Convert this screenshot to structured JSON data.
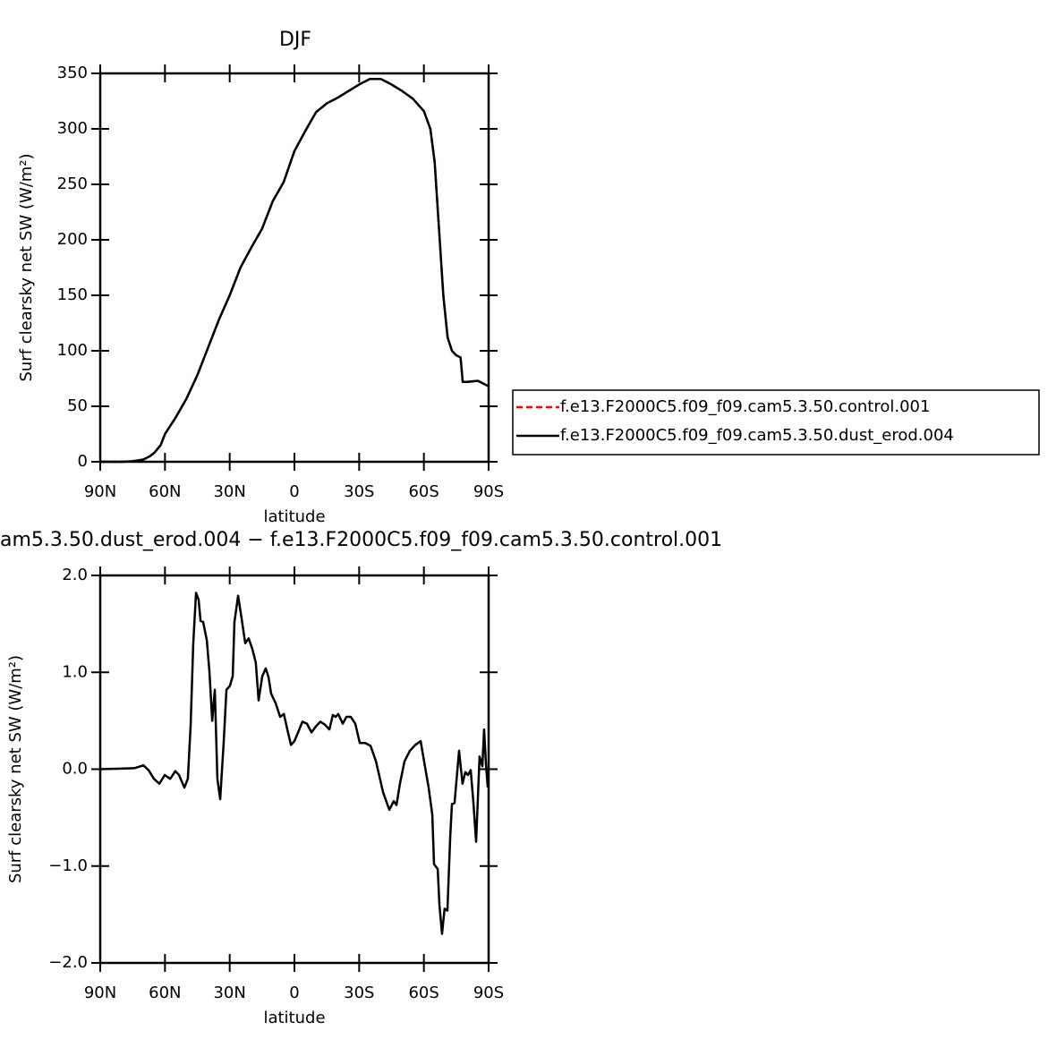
{
  "chart_data": [
    {
      "type": "line",
      "title": "DJF",
      "ylabel": "Surf clearsky net SW (W/m²)",
      "xlabel": "latitude",
      "x": [
        90,
        85,
        80,
        75,
        70,
        67,
        65,
        62,
        60,
        55,
        50,
        45,
        40,
        35,
        30,
        25,
        20,
        15,
        10,
        5,
        0,
        -5,
        -10,
        -15,
        -20,
        -25,
        -30,
        -35,
        -40,
        -45,
        -50,
        -55,
        -60,
        -63,
        -65,
        -67,
        -69,
        -71,
        -73,
        -75,
        -77,
        -78,
        -80,
        -85,
        -88,
        -90
      ],
      "series": [
        {
          "name": "f.e13.F2000C5.f09_f09.cam5.3.50.control.001",
          "color": "#ff0000",
          "line_style": "dashed",
          "values": [
            0,
            0,
            0,
            0.5,
            2,
            5,
            8,
            15,
            25,
            40,
            57,
            78,
            103,
            128,
            150,
            175,
            193,
            210,
            235,
            252,
            280,
            298,
            315,
            323,
            328,
            334,
            340,
            345,
            345,
            340,
            334,
            327,
            316,
            300,
            270,
            210,
            150,
            112,
            100,
            96,
            94,
            72,
            72,
            73,
            70,
            68
          ]
        },
        {
          "name": "f.e13.F2000C5.f09_f09.cam5.3.50.dust_erod.004",
          "color": "#000000",
          "line_style": "solid",
          "values": [
            0,
            0,
            0,
            0.5,
            2,
            5,
            8,
            15,
            25,
            40,
            57,
            78,
            103,
            128,
            150,
            175,
            193,
            210,
            235,
            252,
            280,
            298,
            315,
            323,
            328,
            334,
            340,
            345,
            345,
            340,
            334,
            327,
            316,
            300,
            270,
            210,
            150,
            112,
            100,
            96,
            94,
            72,
            72,
            73,
            70,
            68
          ]
        }
      ],
      "xlim": [
        90,
        -90
      ],
      "xticks": [
        {
          "value": 90,
          "label": "90N"
        },
        {
          "value": 60,
          "label": "60N"
        },
        {
          "value": 30,
          "label": "30N"
        },
        0,
        {
          "value": -30,
          "label": "30S"
        },
        {
          "value": -60,
          "label": "60S"
        },
        {
          "value": -90,
          "label": "90S"
        }
      ],
      "ylim": [
        0,
        350
      ],
      "yticks": [
        0,
        50,
        100,
        150,
        200,
        250,
        300,
        350
      ],
      "legend": "right"
    },
    {
      "type": "line",
      "title": "am5.3.50.dust_erod.004 − f.e13.F2000C5.f09_f09.cam5.3.50.control.001",
      "ylabel": "Surf clearsky net SW (W/m²)",
      "xlabel": "latitude",
      "x": [
        90,
        74.2,
        70,
        67.6,
        65.1,
        62.6,
        60.1,
        57.6,
        55.2,
        53.5,
        51,
        49.4,
        48.1,
        46.9,
        45.6,
        44.4,
        43.5,
        42.3,
        40.6,
        39.4,
        38.1,
        36.9,
        35.7,
        34.4,
        32.8,
        31.5,
        29.9,
        28.6,
        27.8,
        26.1,
        24.5,
        22.8,
        21.2,
        19.5,
        17.9,
        16.6,
        14.9,
        13.3,
        12,
        10.8,
        8.7,
        6.6,
        4.9,
        3.3,
        1.6,
        0,
        -1.7,
        -3.7,
        -5.8,
        -7.9,
        -9.9,
        -12,
        -14.1,
        -16.2,
        -17.8,
        -19.1,
        -20.3,
        -22.4,
        -24.1,
        -26.1,
        -28.2,
        -30.3,
        -32.8,
        -35.3,
        -37.8,
        -41.1,
        -44,
        -46,
        -47.3,
        -48.9,
        -51,
        -53.5,
        -56,
        -58.5,
        -60.1,
        -62.2,
        -63.9,
        -64.7,
        -66.4,
        -67.2,
        -68.4,
        -69.6,
        -70.9,
        -72.2,
        -73,
        -74.2,
        -76.3,
        -77.9,
        -79.2,
        -80.4,
        -81.7,
        -82.9,
        -84.2,
        -85.8,
        -87.1,
        -87.9,
        -88.8,
        -89.6
      ],
      "series": [
        {
          "color": "#000000",
          "line_style": "solid",
          "values": [
            0,
            0.01,
            0.04,
            -0.01,
            -0.1,
            -0.15,
            -0.06,
            -0.1,
            -0.02,
            -0.06,
            -0.19,
            -0.1,
            0.45,
            1.29,
            1.82,
            1.75,
            1.53,
            1.52,
            1.33,
            1.01,
            0.5,
            0.82,
            -0.1,
            -0.31,
            0.27,
            0.82,
            0.86,
            0.96,
            1.52,
            1.79,
            1.56,
            1.3,
            1.35,
            1.24,
            1.1,
            0.71,
            0.96,
            1.04,
            0.95,
            0.78,
            0.68,
            0.54,
            0.57,
            0.41,
            0.25,
            0.29,
            0.38,
            0.49,
            0.47,
            0.38,
            0.44,
            0.49,
            0.46,
            0.41,
            0.56,
            0.54,
            0.57,
            0.47,
            0.54,
            0.54,
            0.47,
            0.27,
            0.27,
            0.24,
            0.08,
            -0.24,
            -0.42,
            -0.33,
            -0.37,
            -0.15,
            0.08,
            0.19,
            0.25,
            0.29,
            0.08,
            -0.19,
            -0.47,
            -0.98,
            -1.03,
            -1.4,
            -1.7,
            -1.44,
            -1.46,
            -0.7,
            -0.36,
            -0.35,
            0.19,
            -0.15,
            -0.03,
            -0.06,
            -0.01,
            -0.33,
            -0.75,
            0.13,
            0.03,
            0.41,
            0.04,
            -0.19
          ]
        }
      ],
      "xlim": [
        90,
        -90
      ],
      "xticks": [
        {
          "value": 90,
          "label": "90N"
        },
        {
          "value": 60,
          "label": "60N"
        },
        {
          "value": 30,
          "label": "30N"
        },
        0,
        {
          "value": -30,
          "label": "30S"
        },
        {
          "value": -60,
          "label": "60S"
        },
        {
          "value": -90,
          "label": "90S"
        }
      ],
      "ylim": [
        -2,
        2
      ],
      "yticks": [
        {
          "value": -2,
          "label": "−2.0"
        },
        {
          "value": -1,
          "label": "−1.0"
        },
        {
          "value": 0,
          "label": "0.0"
        },
        {
          "value": 1,
          "label": "1.0"
        },
        {
          "value": 2,
          "label": "2.0"
        }
      ]
    }
  ]
}
